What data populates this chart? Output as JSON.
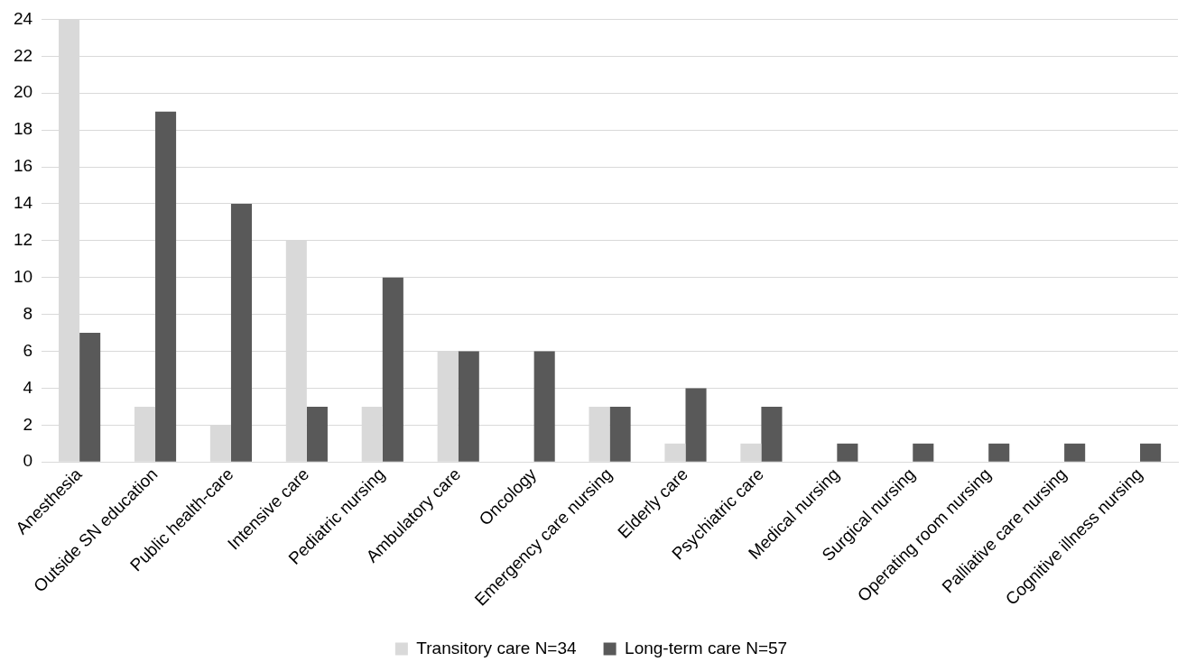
{
  "chart_data": {
    "type": "bar",
    "categories": [
      "Anesthesia",
      "Outside SN education",
      "Public health-care",
      "Intensive care",
      "Pediatric nursing",
      "Ambulatory care",
      "Oncology",
      "Emergency care nursing",
      "Elderly care",
      "Psychiatric care",
      "Medical nursing",
      "Surgical nursing",
      "Operating room nursing",
      "Palliative care nursing",
      "Cognitive illness nursing"
    ],
    "series": [
      {
        "name": "Transitory care N=34",
        "color": "#d9d9d9",
        "values": [
          24,
          3,
          2,
          12,
          3,
          6,
          0,
          3,
          1,
          1,
          0,
          0,
          0,
          0,
          0
        ]
      },
      {
        "name": "Long-term care N=57",
        "color": "#595959",
        "values": [
          7,
          19,
          14,
          3,
          10,
          6,
          6,
          3,
          4,
          3,
          1,
          1,
          1,
          1,
          1
        ]
      }
    ],
    "ylim": [
      0,
      24
    ],
    "yticks": [
      0,
      2,
      4,
      6,
      8,
      10,
      12,
      14,
      16,
      18,
      20,
      22,
      24
    ],
    "grid": "y",
    "legend": "bottom"
  }
}
